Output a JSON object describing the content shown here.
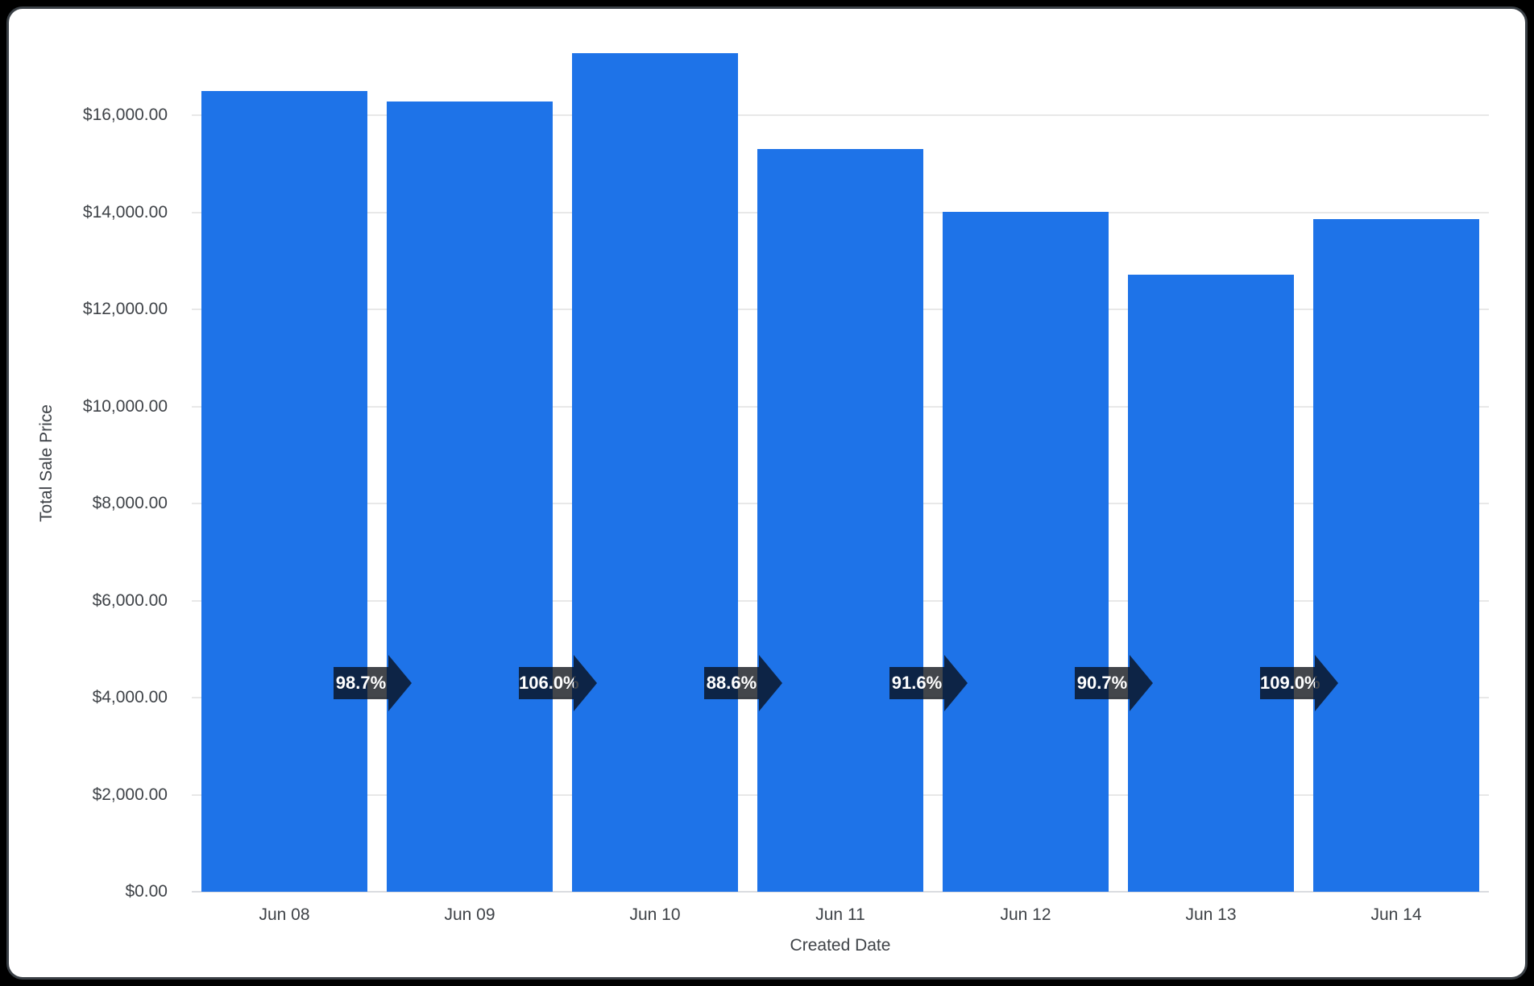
{
  "frame": {
    "background": "#000000",
    "card_background": "#FFFFFF",
    "card_border_color": "#3A4046"
  },
  "chart_data": {
    "type": "bar",
    "title": "",
    "xlabel": "Created Date",
    "ylabel": "Total Sale Price",
    "categories": [
      "Jun 08",
      "Jun 09",
      "Jun 10",
      "Jun 11",
      "Jun 12",
      "Jun 13",
      "Jun 14"
    ],
    "values": [
      16500,
      16290,
      17270,
      15300,
      14015,
      12710,
      13855
    ],
    "value_unit": "USD",
    "ylim": [
      0,
      17800
    ],
    "ytick_step": 2000,
    "yticks": [
      "$0.00",
      "$2,000.00",
      "$4,000.00",
      "$6,000.00",
      "$8,000.00",
      "$10,000.00",
      "$12,000.00",
      "$14,000.00",
      "$16,000.00"
    ],
    "grid": true,
    "legend": false,
    "bar_color": "#1E73E8",
    "gridline_color": "#E8E8E8",
    "baseline_color": "#DADCE0",
    "axis_text_color": "#3F4348",
    "annotations": {
      "kind": "period-over-period-change-arrows",
      "labels": [
        "98.7%",
        "106.0%",
        "88.6%",
        "91.6%",
        "90.7%",
        "109.0%"
      ],
      "arrow_color": "rgba(8,12,18,0.76)",
      "label_text_color": "#FFFFFF"
    }
  }
}
